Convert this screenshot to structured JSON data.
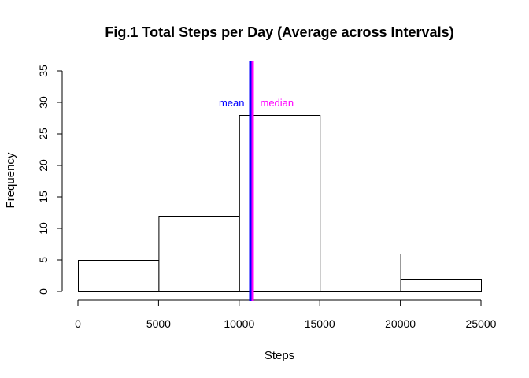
{
  "chart_data": {
    "type": "bar",
    "title": "Fig.1 Total Steps per Day (Average across Intervals)",
    "xlabel": "Steps",
    "ylabel": "Frequency",
    "bins": [
      {
        "from": 0,
        "to": 5000,
        "count": 5
      },
      {
        "from": 5000,
        "to": 10000,
        "count": 12
      },
      {
        "from": 10000,
        "to": 15000,
        "count": 28
      },
      {
        "from": 15000,
        "to": 20000,
        "count": 6
      },
      {
        "from": 20000,
        "to": 25000,
        "count": 2
      }
    ],
    "xlim": [
      0,
      25000
    ],
    "ylim": [
      0,
      35
    ],
    "xticks": [
      0,
      5000,
      10000,
      15000,
      20000,
      25000
    ],
    "yticks": [
      0,
      5,
      10,
      15,
      20,
      25,
      30,
      35
    ],
    "grid": false,
    "reference_lines": [
      {
        "label": "mean",
        "value": 10766,
        "color": "#0000ff"
      },
      {
        "label": "median",
        "value": 10766,
        "color": "#ff00ff"
      }
    ],
    "colors": {
      "bar_fill": "#ffffff",
      "bar_stroke": "#000000",
      "text": "#000000"
    }
  }
}
